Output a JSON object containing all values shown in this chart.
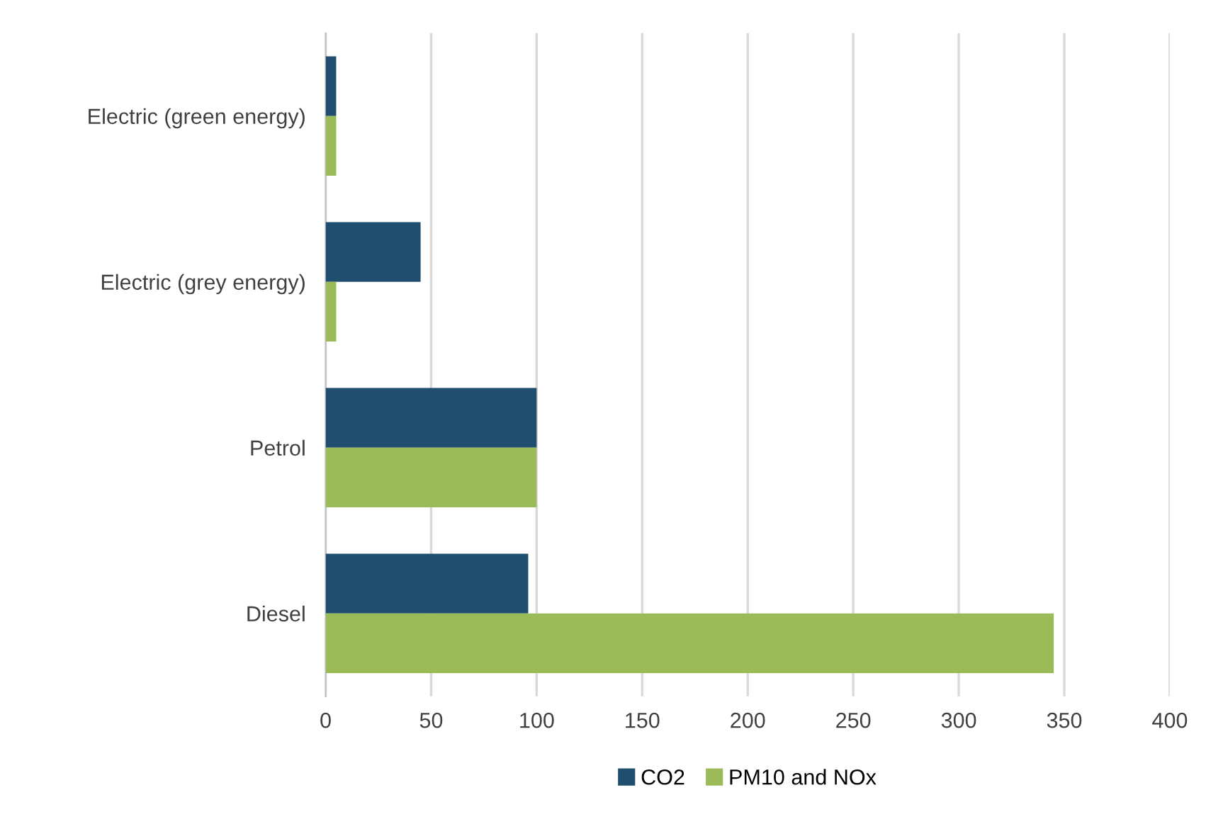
{
  "chart_data": {
    "type": "bar",
    "orientation": "horizontal",
    "categories": [
      "Electric (green energy)",
      "Electric (grey energy)",
      "Petrol",
      "Diesel"
    ],
    "series": [
      {
        "name": "CO2",
        "color": "#1f4e6e",
        "values": [
          5,
          45,
          100,
          96
        ]
      },
      {
        "name": "PM10 and NOx",
        "color": "#9bbb59",
        "values": [
          5,
          5,
          100,
          345
        ]
      }
    ],
    "xlim": [
      0,
      400
    ],
    "xticks": [
      0,
      50,
      100,
      150,
      200,
      250,
      300,
      350,
      400
    ],
    "grid": "x",
    "legend": "bottom"
  }
}
